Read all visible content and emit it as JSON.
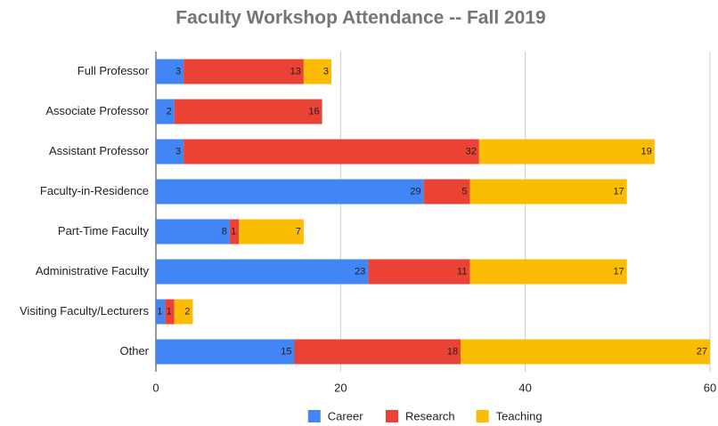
{
  "chart_data": {
    "type": "bar",
    "orientation": "horizontal",
    "stacked": true,
    "title": "Faculty Workshop Attendance -- Fall 2019",
    "categories": [
      "Full Professor",
      "Associate Professor",
      "Assistant Professor",
      "Faculty-in-Residence",
      "Part-Time Faculty",
      "Administrative Faculty",
      "Visiting Faculty/Lecturers",
      "Other"
    ],
    "series": [
      {
        "name": "Career",
        "color": "#4285f4",
        "values": [
          3,
          2,
          3,
          29,
          8,
          23,
          1,
          15
        ]
      },
      {
        "name": "Research",
        "color": "#ea4335",
        "values": [
          13,
          16,
          32,
          5,
          1,
          11,
          1,
          18
        ]
      },
      {
        "name": "Teaching",
        "color": "#fbbc04",
        "values": [
          3,
          null,
          19,
          17,
          7,
          17,
          2,
          27
        ]
      }
    ],
    "xlim": [
      0,
      60
    ],
    "xticks": [
      0,
      20,
      40,
      60
    ],
    "grid": true,
    "legend": "bottom"
  }
}
